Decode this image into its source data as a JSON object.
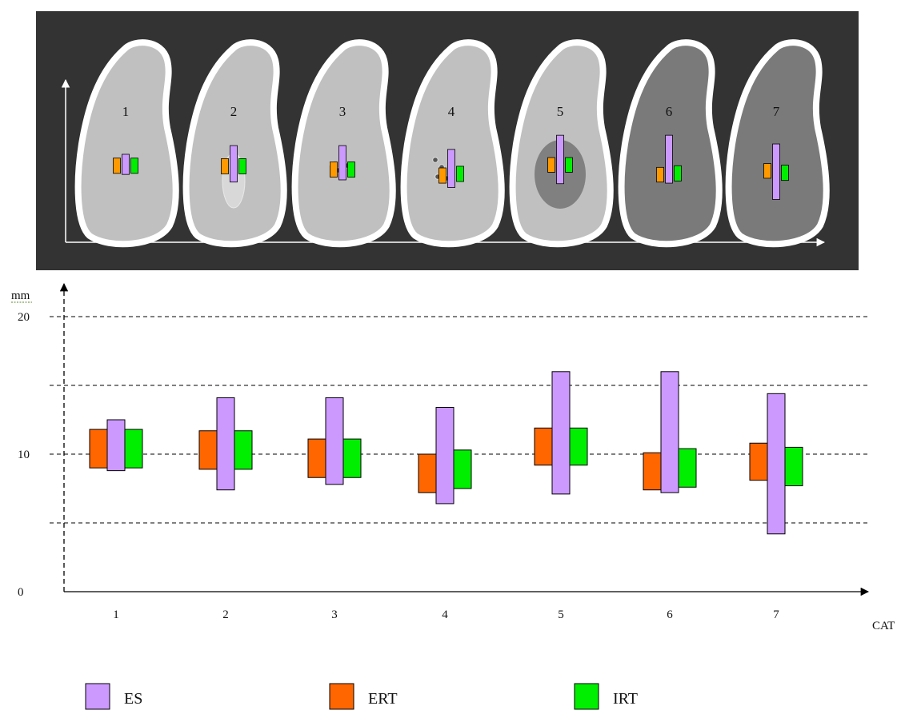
{
  "diagram": {
    "panel_labels": [
      "1",
      "2",
      "3",
      "4",
      "5",
      "6",
      "7"
    ]
  },
  "chart_data": {
    "type": "floating-bar",
    "ylabel": "mm",
    "xlabel": "CAT",
    "ylim": [
      0,
      22
    ],
    "yticks": [
      0,
      10,
      20
    ],
    "grid_lines_y": [
      5,
      10,
      15,
      20
    ],
    "categories": [
      "1",
      "2",
      "3",
      "4",
      "5",
      "6",
      "7"
    ],
    "legend_position": "bottom",
    "series": [
      {
        "name": "ES",
        "color": "#cc99ff",
        "ranges": [
          [
            8.8,
            12.5
          ],
          [
            7.4,
            14.1
          ],
          [
            7.8,
            14.1
          ],
          [
            6.4,
            13.4
          ],
          [
            7.1,
            16
          ],
          [
            7.2,
            16
          ],
          [
            4.2,
            14.4
          ]
        ]
      },
      {
        "name": "ERT",
        "color": "#ff6600",
        "ranges": [
          [
            9,
            11.8
          ],
          [
            8.9,
            11.7
          ],
          [
            8.3,
            11.1
          ],
          [
            7.2,
            10
          ],
          [
            9.2,
            11.9
          ],
          [
            7.4,
            10.1
          ],
          [
            8.1,
            10.8
          ]
        ]
      },
      {
        "name": "IRT",
        "color": "#00ee00",
        "ranges": [
          [
            9,
            11.8
          ],
          [
            8.9,
            11.7
          ],
          [
            8.3,
            11.1
          ],
          [
            7.5,
            10.3
          ],
          [
            9.2,
            11.9
          ],
          [
            7.6,
            10.4
          ],
          [
            7.7,
            10.5
          ]
        ]
      }
    ]
  }
}
